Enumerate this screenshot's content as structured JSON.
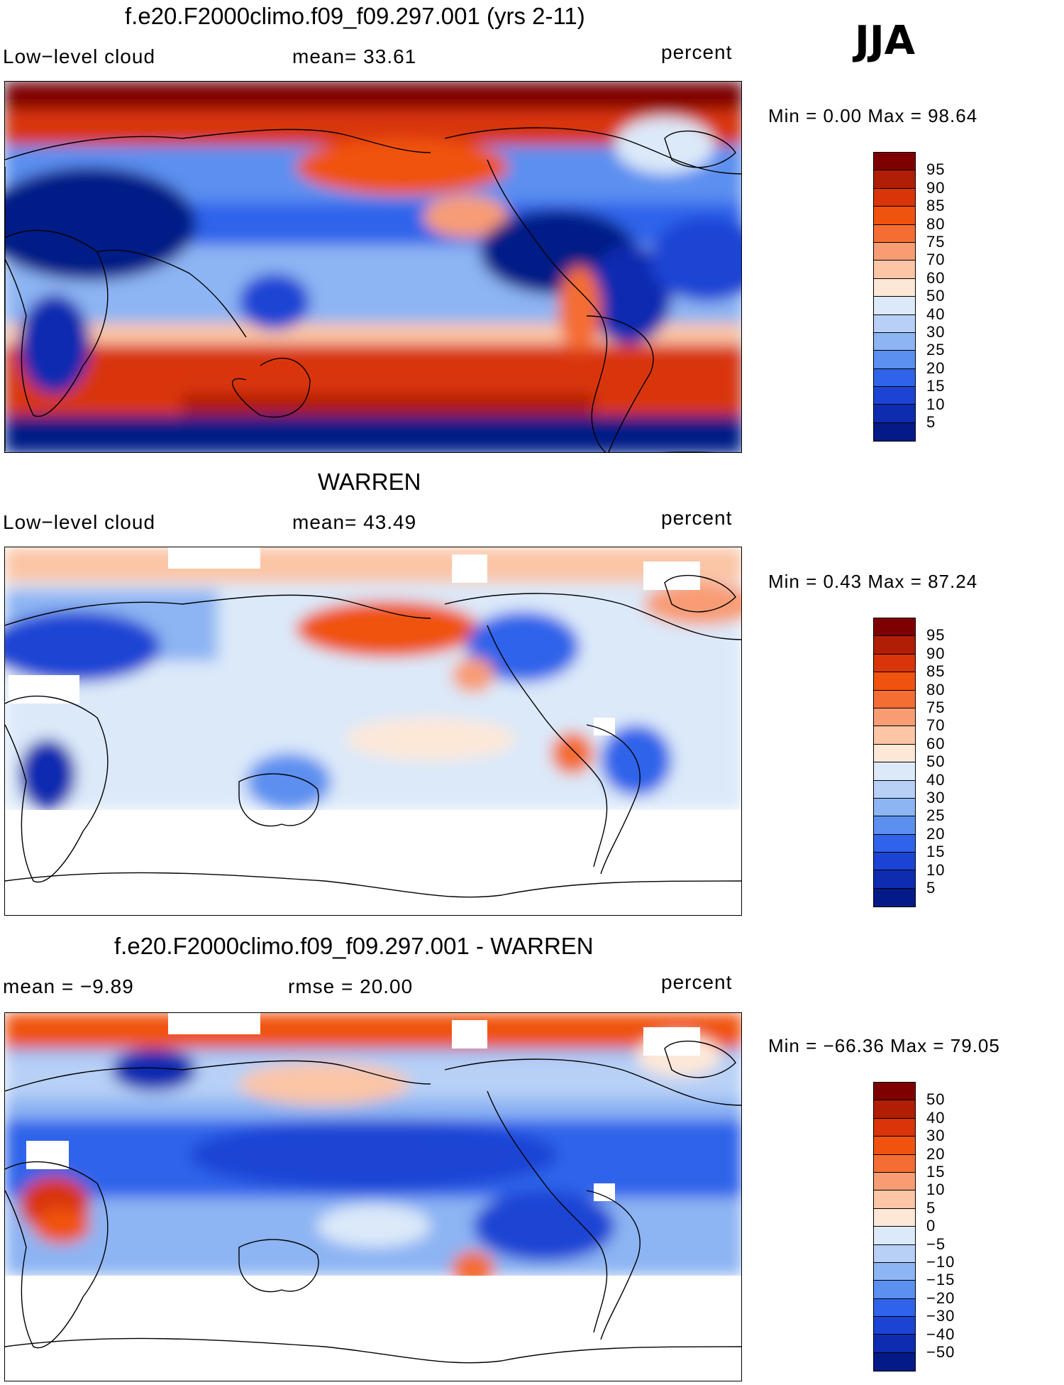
{
  "season": "JJA",
  "panels": [
    {
      "title": "f.e20.F2000climo.f09_f09.297.001 (yrs 2-11)",
      "left_label": "Low−level cloud",
      "stat_label": "mean=   33.61",
      "units": "percent",
      "minmax": "Min =    0.00 Max =   98.64",
      "colorbar_labels": [
        "95",
        "90",
        "85",
        "80",
        "75",
        "70",
        "60",
        "50",
        "40",
        "30",
        "25",
        "20",
        "15",
        "10",
        "5"
      ],
      "colors": [
        "#7f0000",
        "#b01e05",
        "#d93508",
        "#f0520f",
        "#f46d33",
        "#f89c74",
        "#fbc5a6",
        "#fde8d8",
        "#dbe9f9",
        "#b8d0f6",
        "#8db4f3",
        "#5b8ff0",
        "#2f63ea",
        "#1c44d4",
        "#0e2cb0",
        "#041a86"
      ]
    },
    {
      "title": "WARREN",
      "left_label": "Low−level cloud",
      "stat_label": "mean=   43.49",
      "units": "percent",
      "minmax": "Min =    0.43 Max =   87.24",
      "colorbar_labels": [
        "95",
        "90",
        "85",
        "80",
        "75",
        "70",
        "60",
        "50",
        "40",
        "30",
        "25",
        "20",
        "15",
        "10",
        "5"
      ],
      "colors": [
        "#7f0000",
        "#b01e05",
        "#d93508",
        "#f0520f",
        "#f46d33",
        "#f89c74",
        "#fbc5a6",
        "#fde8d8",
        "#dbe9f9",
        "#b8d0f6",
        "#8db4f3",
        "#5b8ff0",
        "#2f63ea",
        "#1c44d4",
        "#0e2cb0",
        "#041a86"
      ]
    },
    {
      "title": "f.e20.F2000climo.f09_f09.297.001 - WARREN",
      "left_label": "mean =   −9.89",
      "stat_label": "rmse =   20.00",
      "units": "percent",
      "minmax": "Min = −66.36 Max =   79.05",
      "colorbar_labels": [
        "50",
        "40",
        "30",
        "20",
        "15",
        "10",
        "5",
        "0",
        "−5",
        "−10",
        "−15",
        "−20",
        "−30",
        "−40",
        "−50"
      ],
      "colors": [
        "#7f0000",
        "#b01e05",
        "#d93508",
        "#f0520f",
        "#f46d33",
        "#f89c74",
        "#fbc5a6",
        "#fde8d8",
        "#dbe9f9",
        "#b8d0f6",
        "#8db4f3",
        "#5b8ff0",
        "#2f63ea",
        "#1c44d4",
        "#0e2cb0",
        "#041a86"
      ]
    }
  ]
}
